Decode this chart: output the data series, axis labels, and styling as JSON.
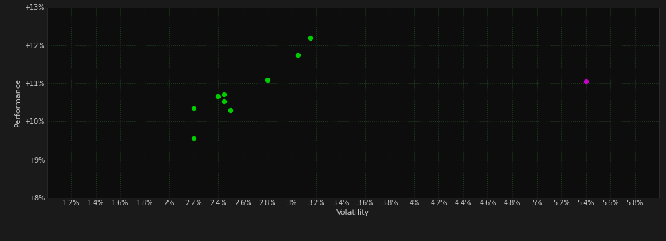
{
  "xlabel": "Volatility",
  "ylabel": "Performance",
  "background_color": "#1a1a1a",
  "plot_background_color": "#0d0d0d",
  "grid_color": "#1e3a1e",
  "text_color": "#cccccc",
  "green_points": [
    [
      2.2,
      10.35
    ],
    [
      2.2,
      9.55
    ],
    [
      2.4,
      10.65
    ],
    [
      2.45,
      10.72
    ],
    [
      2.45,
      10.53
    ],
    [
      2.5,
      10.3
    ],
    [
      2.8,
      11.1
    ],
    [
      3.05,
      11.75
    ],
    [
      3.15,
      12.2
    ]
  ],
  "magenta_points": [
    [
      5.4,
      11.05
    ]
  ],
  "xlim": [
    1.0,
    6.0
  ],
  "ylim": [
    8.0,
    13.0
  ],
  "xtick_values": [
    1.2,
    1.4,
    1.6,
    1.8,
    2.0,
    2.2,
    2.4,
    2.6,
    2.8,
    3.0,
    3.2,
    3.4,
    3.6,
    3.8,
    4.0,
    4.2,
    4.4,
    4.6,
    4.8,
    5.0,
    5.2,
    5.4,
    5.6,
    5.8
  ],
  "xtick_labels": [
    "1.2%",
    "1.4%",
    "1.6%",
    "1.8%",
    "2%",
    "2.2%",
    "2.4%",
    "2.6%",
    "2.8%",
    "3%",
    "3.2%",
    "3.4%",
    "3.6%",
    "3.8%",
    "4%",
    "4.2%",
    "4.4%",
    "4.6%",
    "4.8%",
    "5%",
    "5.2%",
    "5.4%",
    "5.6%",
    "5.8%"
  ],
  "ytick_values": [
    8.0,
    9.0,
    10.0,
    11.0,
    12.0,
    13.0
  ],
  "ytick_labels": [
    "+8%",
    "+9%",
    "+10%",
    "+11%",
    "+12%",
    "+13%"
  ],
  "point_size": 18,
  "marker": "o",
  "tick_fontsize": 7,
  "label_fontsize": 8
}
